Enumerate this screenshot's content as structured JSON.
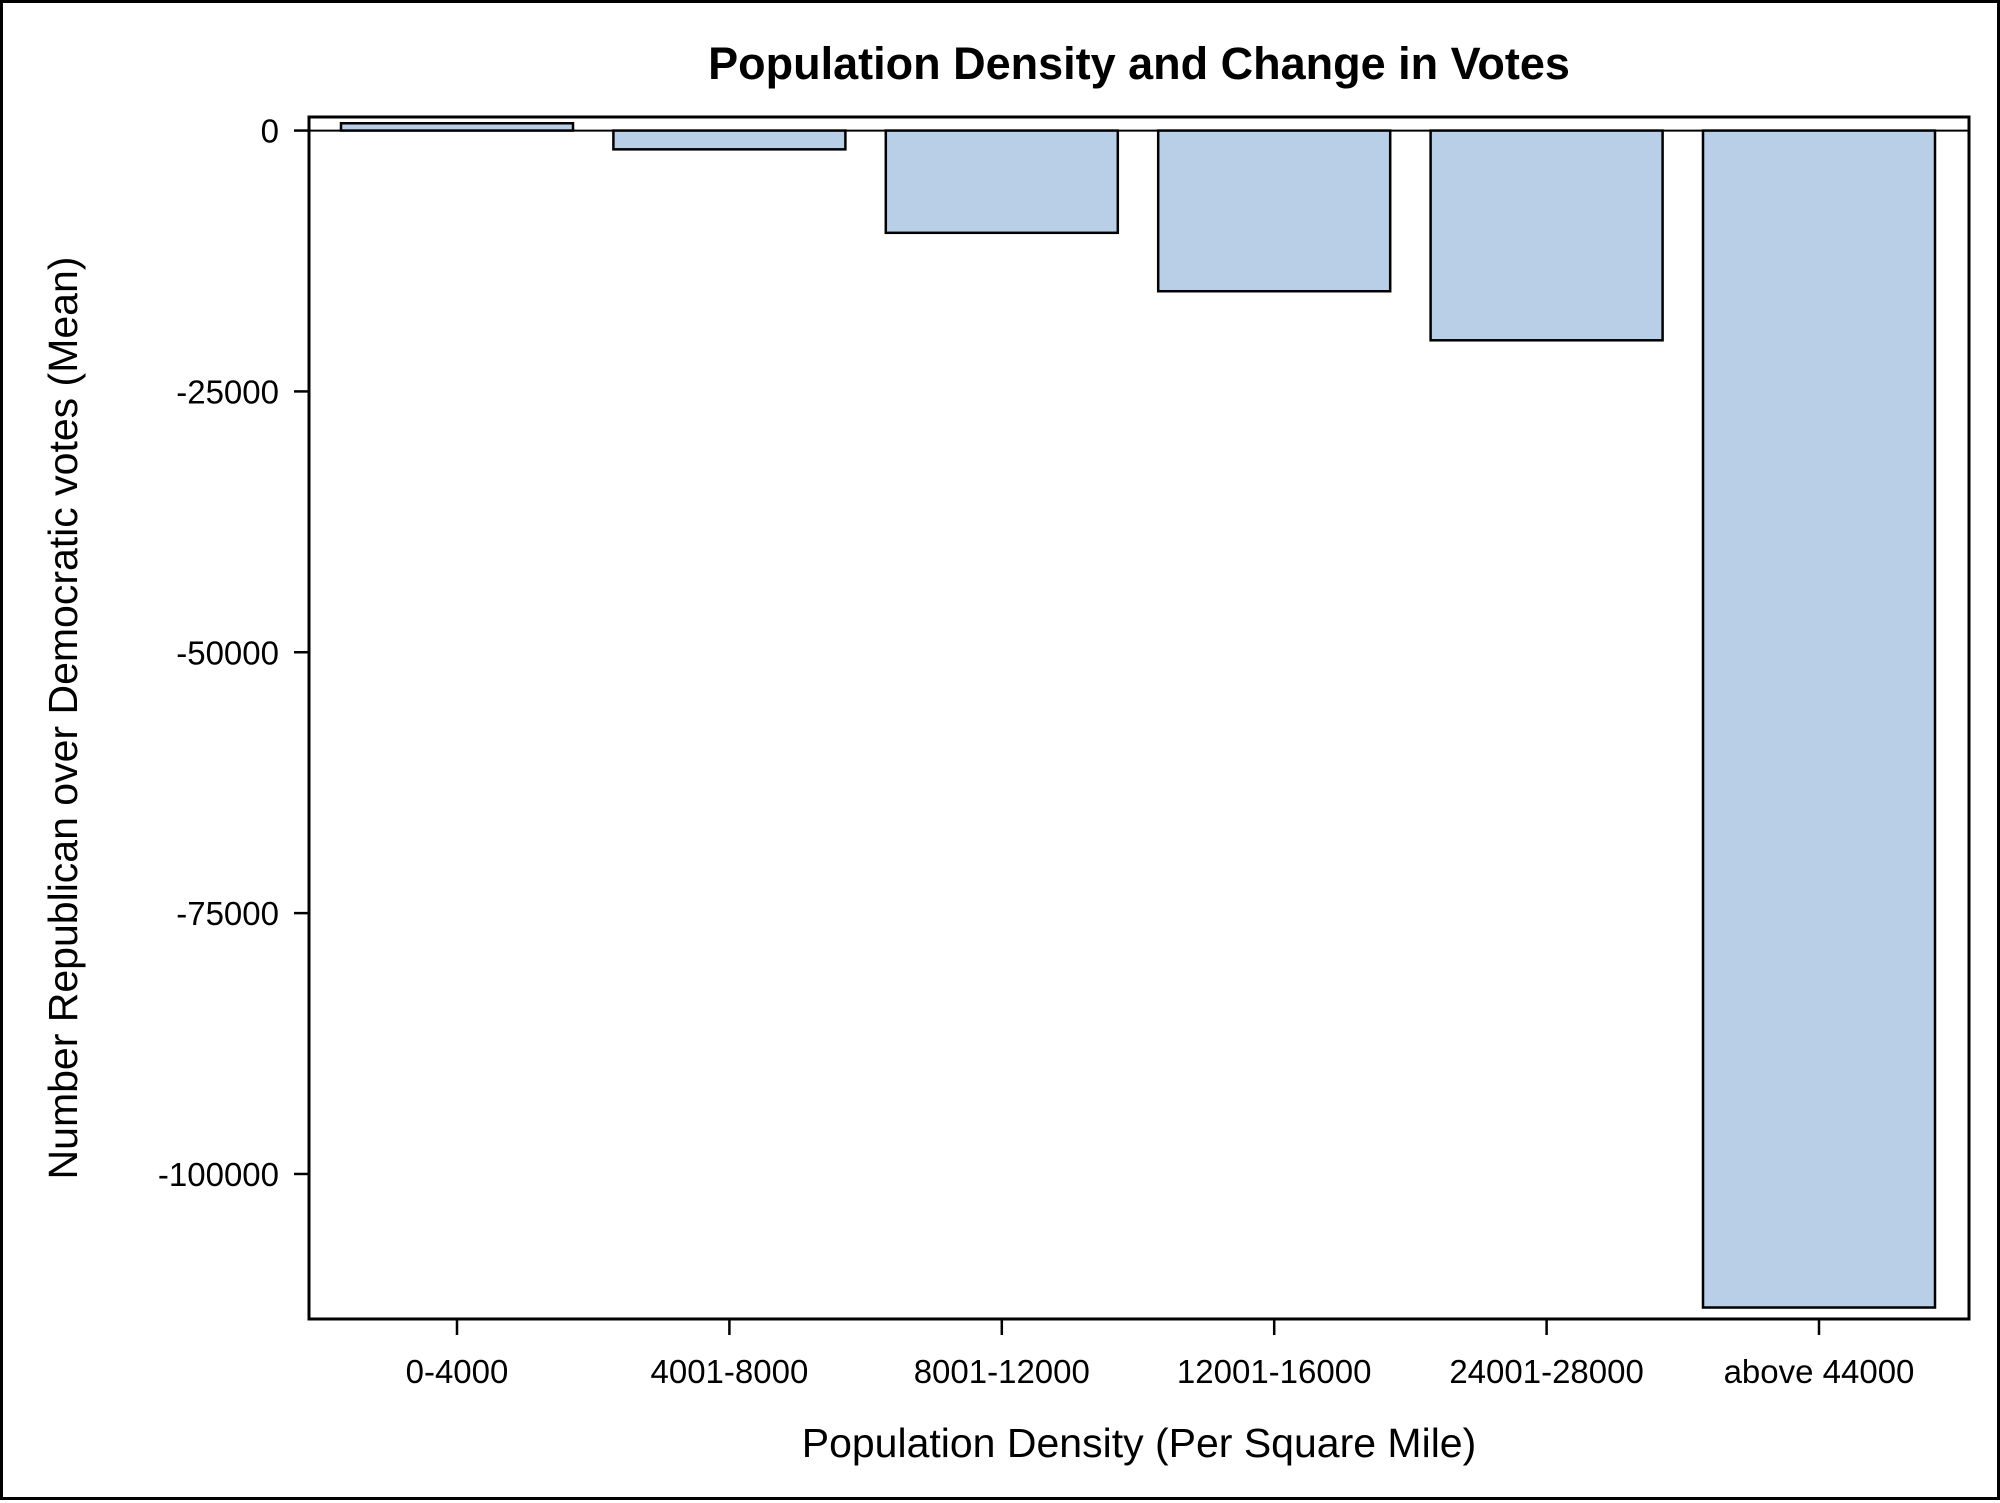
{
  "chart_data": {
    "type": "bar",
    "title": "Population Density and Change in Votes",
    "xlabel": "Population Density (Per Square Mile)",
    "ylabel": "Number Republican over Democratic votes (Mean)",
    "categories": [
      "0-4000",
      "4001-8000",
      "8001-12000",
      "12001-16000",
      "24001-28000",
      "above 44000"
    ],
    "values": [
      700,
      -1800,
      -9800,
      -15400,
      -20100,
      -112800
    ],
    "ylim": [
      -113900,
      1300
    ],
    "yticks": [
      0,
      -25000,
      -50000,
      -75000,
      -100000
    ],
    "ytick_labels": [
      "0",
      "-25000",
      "-50000",
      "-75000",
      "-100000"
    ],
    "grid": false,
    "legend": "none",
    "colors": {
      "bar_fill": "#b9cfe7",
      "bar_stroke": "#000000",
      "axis": "#000000",
      "background": "#ffffff"
    }
  }
}
